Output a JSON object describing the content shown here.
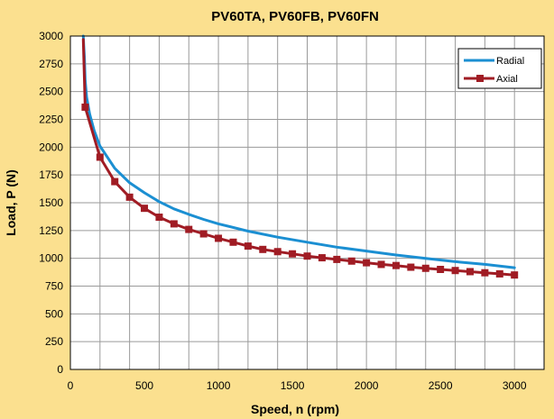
{
  "chart_data": {
    "type": "line",
    "title": "PV60TA, PV60FB, PV60FN",
    "xlabel": "Speed, n (rpm)",
    "ylabel": "Load, P (N)",
    "xlim": [
      0,
      3200
    ],
    "ylim": [
      0,
      3000
    ],
    "xticks": [
      0,
      500,
      1000,
      1500,
      2000,
      2500,
      3000
    ],
    "yticks": [
      0,
      250,
      500,
      750,
      1000,
      1250,
      1500,
      1750,
      2000,
      2250,
      2500,
      2750,
      3000
    ],
    "grid": true,
    "legend_position": "top-right",
    "series": [
      {
        "name": "Radial",
        "color": "#1b8fd2",
        "marker": "none",
        "points": [
          [
            87,
            3000
          ],
          [
            90,
            2920
          ],
          [
            95,
            2800
          ],
          [
            100,
            2600
          ],
          [
            110,
            2450
          ],
          [
            130,
            2300
          ],
          [
            160,
            2150
          ],
          [
            200,
            2010
          ],
          [
            300,
            1810
          ],
          [
            400,
            1680
          ],
          [
            500,
            1590
          ],
          [
            600,
            1510
          ],
          [
            700,
            1445
          ],
          [
            800,
            1395
          ],
          [
            900,
            1350
          ],
          [
            1000,
            1310
          ],
          [
            1200,
            1245
          ],
          [
            1400,
            1190
          ],
          [
            1600,
            1145
          ],
          [
            1800,
            1100
          ],
          [
            2000,
            1065
          ],
          [
            2200,
            1030
          ],
          [
            2400,
            1000
          ],
          [
            2600,
            970
          ],
          [
            2800,
            945
          ],
          [
            3000,
            915
          ]
        ]
      },
      {
        "name": "Axial",
        "color": "#a01c24",
        "marker": "square",
        "x": [
          87,
          100,
          200,
          300,
          400,
          500,
          600,
          700,
          800,
          900,
          1000,
          1100,
          1200,
          1300,
          1400,
          1500,
          1600,
          1700,
          1800,
          1900,
          2000,
          2100,
          2200,
          2300,
          2400,
          2500,
          2600,
          2700,
          2800,
          2900,
          3000
        ],
        "y": [
          2970,
          2360,
          1910,
          1690,
          1550,
          1450,
          1370,
          1310,
          1260,
          1220,
          1180,
          1145,
          1110,
          1080,
          1060,
          1040,
          1020,
          1005,
          990,
          975,
          960,
          945,
          935,
          920,
          910,
          900,
          890,
          880,
          870,
          860,
          850
        ],
        "marker_indices": [
          1,
          2,
          3,
          4,
          5,
          6,
          7,
          8,
          9,
          10,
          11,
          12,
          13,
          14,
          15,
          16,
          17,
          18,
          19,
          20,
          21,
          22,
          23,
          24,
          25,
          26,
          27,
          28,
          29,
          30
        ]
      }
    ]
  },
  "colors": {
    "background": "#fbe08f",
    "plot_area": "#ffffff",
    "grid": "#9a9a9a",
    "radial": "#1b8fd2",
    "axial": "#a01c24"
  }
}
